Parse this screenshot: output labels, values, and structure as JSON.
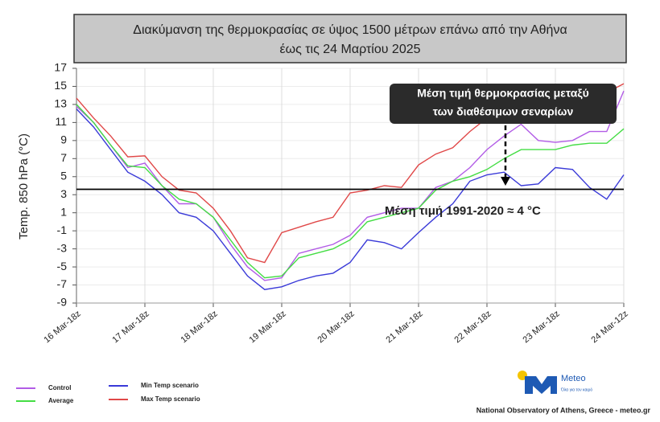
{
  "chart_data": {
    "type": "line",
    "title": "Διακύμανση της θερμοκρασίας σε ύψος 1500 μέτρων επάνω από την Αθήνα",
    "subtitle": "έως τις 24 Μαρτίου 2025",
    "y_label": "Temp. 850 hPa (°C)",
    "categories": [
      "16 Mar-18z",
      null,
      null,
      null,
      "17 Mar-18z",
      null,
      null,
      null,
      "18 Mar-18z",
      null,
      null,
      null,
      "19 Mar-18z",
      null,
      null,
      null,
      "20 Mar-18z",
      null,
      null,
      null,
      "21 Mar-18z",
      null,
      null,
      null,
      "22 Mar-18z",
      null,
      null,
      null,
      "23 Mar-18z",
      null,
      null,
      null,
      "24 Mar-12z"
    ],
    "series": [
      {
        "name": "Control",
        "color": "#b25ce6",
        "values": [
          12.8,
          11,
          8.5,
          6,
          6.5,
          4,
          2,
          2,
          0.5,
          -2.5,
          -5,
          -6.5,
          -6.2,
          -3.5,
          -3,
          -2.5,
          -1.5,
          0.5,
          1,
          1.5,
          1.5,
          3.8,
          4.5,
          6,
          8,
          9.5,
          10.8,
          9,
          8.8,
          9,
          10,
          10,
          14.5
        ]
      },
      {
        "name": "Average",
        "color": "#44dd44",
        "values": [
          13,
          11,
          8.5,
          6.2,
          6,
          4,
          2.5,
          2,
          0.5,
          -2,
          -4.5,
          -6.2,
          -6,
          -4,
          -3.5,
          -3,
          -2,
          0,
          0.5,
          1,
          1.5,
          3.5,
          4.5,
          5,
          5.8,
          7,
          8,
          8,
          8,
          8.5,
          8.7,
          8.7,
          10.3
        ]
      },
      {
        "name": "Min Temp scenario",
        "color": "#3a3ad8",
        "values": [
          12.5,
          10.5,
          8,
          5.5,
          4.5,
          3,
          1,
          0.5,
          -1,
          -3.5,
          -6,
          -7.5,
          -7.2,
          -6.5,
          -6,
          -5.7,
          -4.5,
          -2,
          -2.3,
          -3,
          -1.2,
          0.5,
          2,
          4.5,
          5.2,
          5.5,
          4,
          4.2,
          6,
          5.8,
          3.8,
          2.5,
          5.2
        ]
      },
      {
        "name": "Max Temp scenario",
        "color": "#e04848",
        "values": [
          13.7,
          11.5,
          9.5,
          7.2,
          7.3,
          5,
          3.5,
          3.2,
          1.5,
          -1,
          -4,
          -4.5,
          -1.2,
          -0.6,
          0,
          0.5,
          3.2,
          3.5,
          4,
          3.8,
          6.3,
          7.5,
          8.2,
          10,
          11.5,
          13,
          13,
          13.5,
          13,
          12.8,
          13.3,
          14.3,
          15.3
        ]
      }
    ],
    "ylim": [
      -9,
      17
    ],
    "yticks": [
      17,
      15,
      13,
      11,
      9,
      7,
      5,
      3,
      1,
      -1,
      -3,
      -5,
      -7,
      -9
    ],
    "grid": true,
    "reference_value": 3.6,
    "reference_label": "Μέση τιμή 1991-2020 ≈ 4 °C",
    "callout": [
      "Μέση τιμή θερμοκρασίας μεταξύ",
      "των διαθέσιμων σεναρίων"
    ],
    "footer": {
      "logo_text": "Meteo",
      "logo_tagline": "Όλα για τον καιρό",
      "credit": "National Observatory of Athens, Greece - meteo.gr"
    }
  }
}
